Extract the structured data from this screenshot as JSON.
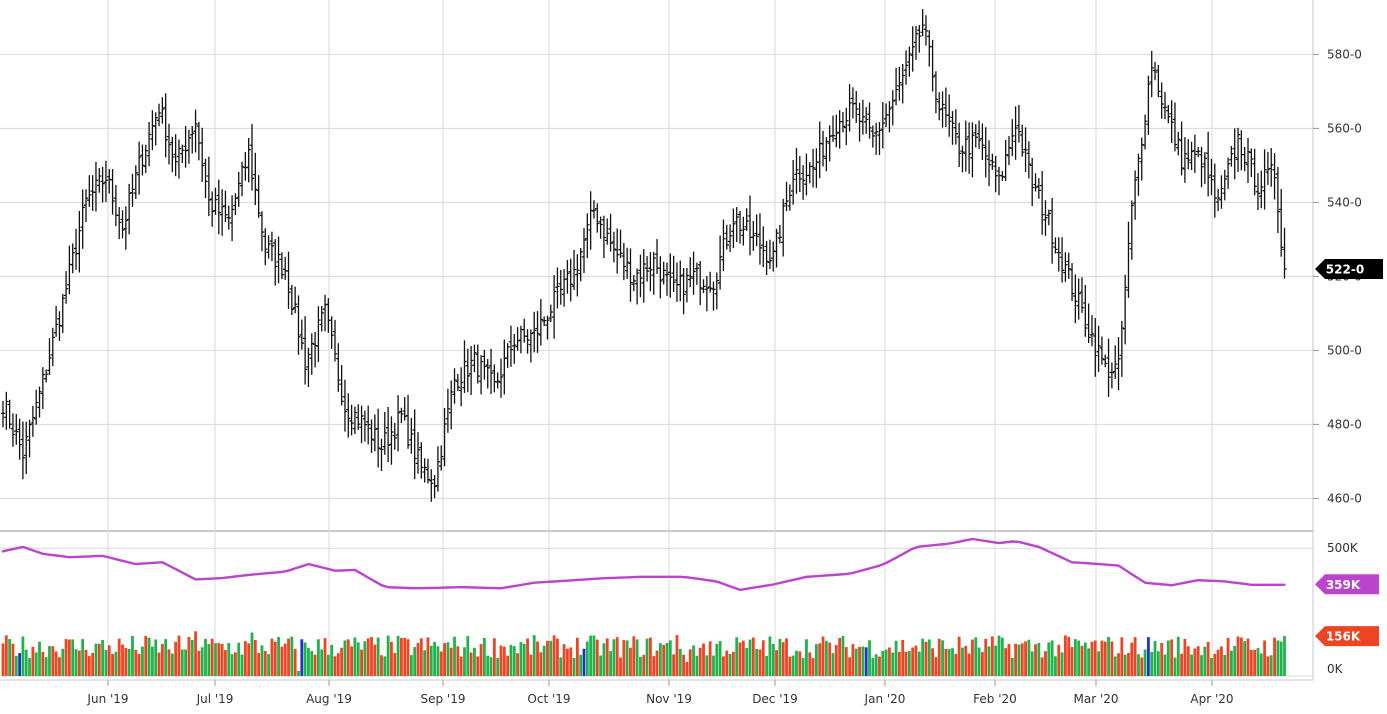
{
  "chart_data": {
    "type": "ohlc",
    "x_tick_labels": [
      "Jun '19",
      "Jul '19",
      "Aug '19",
      "Sep '19",
      "Oct '19",
      "Nov '19",
      "Dec '19",
      "Jan '20",
      "Feb '20",
      "Mar '20",
      "Apr '20"
    ],
    "price_axis": {
      "ticks": [
        460,
        480,
        500,
        520,
        540,
        560,
        580
      ],
      "tick_labels": [
        "460-0",
        "480-0",
        "500-0",
        "520-0",
        "540-0",
        "560-0",
        "580-0"
      ],
      "ylim": [
        452,
        592
      ],
      "grid": true,
      "last_price": 522,
      "last_price_label": "522-0"
    },
    "price_anchors": [
      [
        0,
        486
      ],
      [
        6,
        472
      ],
      [
        11,
        488
      ],
      [
        18,
        513
      ],
      [
        25,
        540
      ],
      [
        31,
        547
      ],
      [
        36,
        533
      ],
      [
        41,
        550
      ],
      [
        47,
        566
      ],
      [
        52,
        550
      ],
      [
        58,
        562
      ],
      [
        62,
        540
      ],
      [
        68,
        535
      ],
      [
        74,
        553
      ],
      [
        79,
        528
      ],
      [
        85,
        522
      ],
      [
        91,
        497
      ],
      [
        97,
        510
      ],
      [
        103,
        485
      ],
      [
        109,
        480
      ],
      [
        114,
        474
      ],
      [
        120,
        482
      ],
      [
        126,
        468
      ],
      [
        130,
        465
      ],
      [
        136,
        492
      ],
      [
        142,
        497
      ],
      [
        148,
        490
      ],
      [
        154,
        503
      ],
      [
        160,
        504
      ],
      [
        166,
        513
      ],
      [
        172,
        521
      ],
      [
        178,
        538
      ],
      [
        184,
        527
      ],
      [
        190,
        520
      ],
      [
        196,
        524
      ],
      [
        202,
        516
      ],
      [
        208,
        520
      ],
      [
        214,
        519
      ],
      [
        220,
        536
      ],
      [
        226,
        530
      ],
      [
        232,
        525
      ],
      [
        238,
        548
      ],
      [
        244,
        549
      ],
      [
        250,
        561
      ],
      [
        256,
        565
      ],
      [
        262,
        557
      ],
      [
        268,
        567
      ],
      [
        274,
        580
      ],
      [
        277,
        588
      ],
      [
        282,
        566
      ],
      [
        288,
        555
      ],
      [
        294,
        556
      ],
      [
        300,
        545
      ],
      [
        305,
        562
      ],
      [
        310,
        545
      ],
      [
        314,
        537
      ],
      [
        320,
        522
      ],
      [
        326,
        508
      ],
      [
        332,
        495
      ],
      [
        336,
        495
      ],
      [
        340,
        538
      ],
      [
        346,
        578
      ],
      [
        350,
        565
      ],
      [
        355,
        552
      ],
      [
        361,
        552
      ],
      [
        366,
        539
      ],
      [
        372,
        557
      ],
      [
        378,
        545
      ],
      [
        383,
        548
      ],
      [
        386,
        522
      ]
    ],
    "volume_axis": {
      "ticks": [
        0,
        500000
      ],
      "tick_labels": [
        "0K",
        "500K"
      ],
      "ylim": [
        0,
        540000
      ],
      "grid": true
    },
    "average_volume_anchors": [
      [
        0,
        488
      ],
      [
        6,
        505
      ],
      [
        12,
        478
      ],
      [
        20,
        465
      ],
      [
        30,
        470
      ],
      [
        40,
        438
      ],
      [
        48,
        445
      ],
      [
        58,
        378
      ],
      [
        66,
        383
      ],
      [
        75,
        397
      ],
      [
        85,
        408
      ],
      [
        92,
        438
      ],
      [
        100,
        412
      ],
      [
        106,
        415
      ],
      [
        115,
        348
      ],
      [
        125,
        343
      ],
      [
        138,
        348
      ],
      [
        150,
        343
      ],
      [
        160,
        365
      ],
      [
        170,
        373
      ],
      [
        180,
        382
      ],
      [
        192,
        388
      ],
      [
        205,
        388
      ],
      [
        215,
        370
      ],
      [
        222,
        337
      ],
      [
        232,
        358
      ],
      [
        242,
        388
      ],
      [
        255,
        400
      ],
      [
        265,
        435
      ],
      [
        275,
        505
      ],
      [
        285,
        518
      ],
      [
        292,
        536
      ],
      [
        300,
        520
      ],
      [
        305,
        528
      ],
      [
        312,
        505
      ],
      [
        322,
        445
      ],
      [
        328,
        440
      ],
      [
        336,
        432
      ],
      [
        344,
        365
      ],
      [
        352,
        355
      ],
      [
        360,
        375
      ],
      [
        368,
        370
      ],
      [
        376,
        357
      ]
    ],
    "volume_color_pattern": [
      0,
      0,
      1,
      0,
      1,
      2,
      1,
      1,
      1,
      0,
      1,
      1,
      0,
      1,
      1,
      0,
      0,
      0,
      1,
      0,
      0,
      1,
      1,
      0,
      1,
      0,
      0,
      0,
      1,
      0,
      1,
      1,
      0,
      0,
      1,
      0,
      0,
      0,
      1,
      1,
      0,
      0,
      1,
      0,
      1,
      1,
      1,
      0,
      0,
      1,
      0,
      1,
      0,
      0,
      1,
      1,
      0,
      1,
      0,
      0,
      1,
      1,
      1,
      0,
      1,
      0,
      0,
      0,
      1,
      1,
      0,
      1,
      1,
      0,
      0,
      1,
      0,
      0,
      1,
      0,
      1,
      0,
      0,
      1,
      0
    ],
    "volume_spikes": [
      [
        32,
        120
      ],
      [
        58,
        175
      ],
      [
        75,
        170
      ],
      [
        89,
        20
      ],
      [
        203,
        160
      ],
      [
        206,
        55
      ],
      [
        210,
        110
      ],
      [
        214,
        80
      ],
      [
        220,
        95
      ]
    ],
    "series": [
      {
        "name": "",
        "color": "#bb44cc",
        "current_value": 359000,
        "current_label": "359K"
      },
      {
        "name": "",
        "color": "#ee4422",
        "current_value": 156000,
        "current_label": "156K"
      }
    ],
    "colors": {
      "price_bar": "#111111",
      "volume_up": "#22b24c",
      "volume_down": "#ee4422",
      "volume_other": "#2233cc",
      "average_volume_line": "#bb44cc",
      "grid": "#d8d8d8",
      "last_price_badge": "#000000",
      "average_badge": "#bb44cc",
      "volume_badge": "#ee4422"
    }
  }
}
